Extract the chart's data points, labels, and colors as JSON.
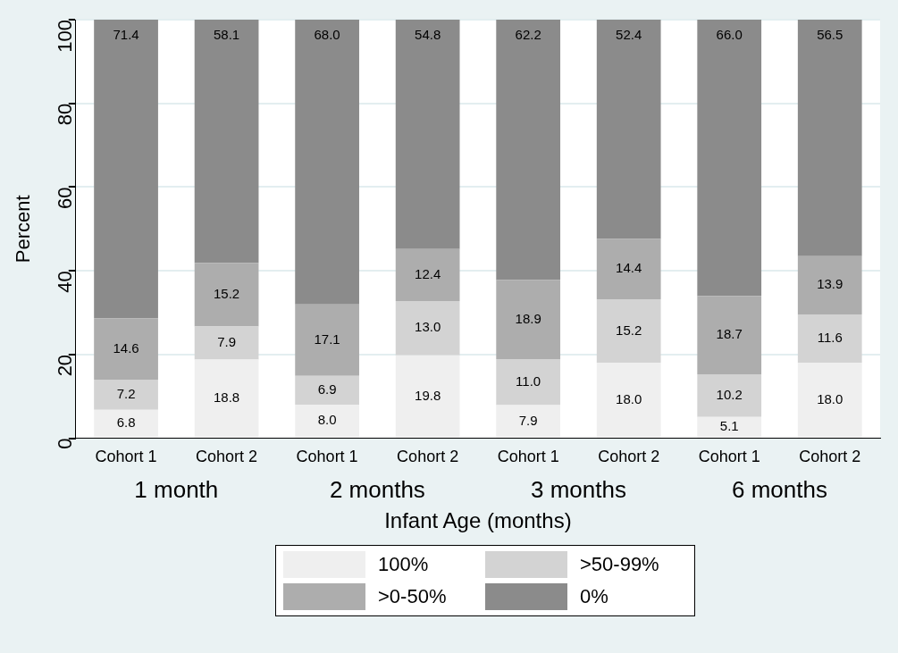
{
  "chart_data": {
    "type": "bar",
    "stacked": true,
    "categories": [
      "Cohort 1",
      "Cohort 2",
      "Cohort 1",
      "Cohort 2",
      "Cohort 1",
      "Cohort 2",
      "Cohort 1",
      "Cohort 2"
    ],
    "series": [
      {
        "name": "100%",
        "color": "#efefef",
        "values": [
          6.8,
          18.8,
          8.0,
          19.8,
          7.9,
          18.0,
          5.1,
          18.0
        ],
        "value_labels": [
          "6.8",
          "18.8",
          "8.0",
          "19.8",
          "7.9",
          "18.0",
          "5.1",
          "18.0"
        ]
      },
      {
        "name": ">50-99%",
        "color": "#d3d3d3",
        "values": [
          7.2,
          7.9,
          6.9,
          13.0,
          11.0,
          15.2,
          10.2,
          11.6
        ],
        "value_labels": [
          "7.2",
          "7.9",
          "6.9",
          "13.0",
          "11.0",
          "15.2",
          "10.2",
          "11.6"
        ]
      },
      {
        "name": ">0-50%",
        "color": "#adadad",
        "values": [
          14.6,
          15.2,
          17.1,
          12.4,
          18.9,
          14.4,
          18.7,
          13.9
        ],
        "value_labels": [
          "14.6",
          "15.2",
          "17.1",
          "12.4",
          "18.9",
          "14.4",
          "18.7",
          "13.9"
        ]
      },
      {
        "name": "0%",
        "color": "#8b8b8b",
        "values": [
          71.4,
          58.1,
          68.0,
          54.8,
          62.2,
          52.4,
          66.0,
          56.5
        ],
        "value_labels": [
          "71.4",
          "58.1",
          "68.0",
          "54.8",
          "62.2",
          "52.4",
          "66.0",
          "56.5"
        ]
      }
    ],
    "annotations": [
      "1 month",
      "2 months",
      "3 months",
      "6 months"
    ],
    "xlabel": "Infant Age (months)",
    "ylabel": "Percent",
    "ylim": [
      0,
      100
    ],
    "yticks": [
      0,
      20,
      40,
      60,
      80,
      100
    ],
    "grid": "y",
    "legend": "bottom"
  }
}
